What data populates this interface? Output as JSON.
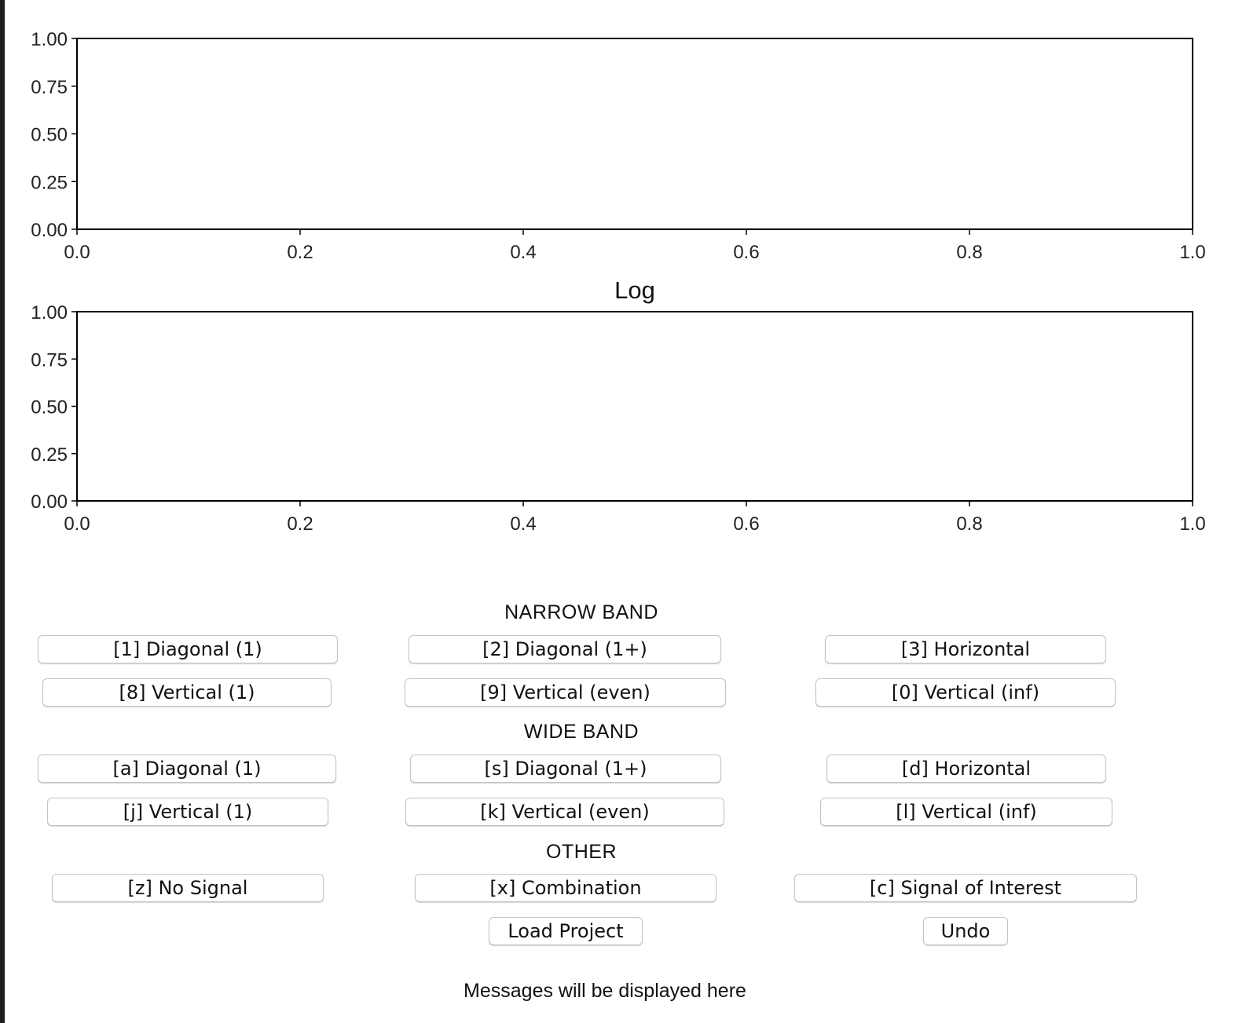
{
  "plots": {
    "top": {
      "title": "",
      "xticks": [
        "0.0",
        "0.2",
        "0.4",
        "0.6",
        "0.8",
        "1.0"
      ],
      "yticks": [
        "0.00",
        "0.25",
        "0.50",
        "0.75",
        "1.00"
      ]
    },
    "bottom": {
      "title": "Log",
      "xticks": [
        "0.0",
        "0.2",
        "0.4",
        "0.6",
        "0.8",
        "1.0"
      ],
      "yticks": [
        "0.00",
        "0.25",
        "0.50",
        "0.75",
        "1.00"
      ]
    }
  },
  "chart_data": [
    {
      "type": "line",
      "title": "",
      "xlabel": "",
      "ylabel": "",
      "xlim": [
        0.0,
        1.0
      ],
      "ylim": [
        0.0,
        1.0
      ],
      "xticks": [
        0.0,
        0.2,
        0.4,
        0.6,
        0.8,
        1.0
      ],
      "yticks": [
        0.0,
        0.25,
        0.5,
        0.75,
        1.0
      ],
      "series": [],
      "grid": false
    },
    {
      "type": "line",
      "title": "Log",
      "xlabel": "",
      "ylabel": "",
      "xlim": [
        0.0,
        1.0
      ],
      "ylim": [
        0.0,
        1.0
      ],
      "xticks": [
        0.0,
        0.2,
        0.4,
        0.6,
        0.8,
        1.0
      ],
      "yticks": [
        0.0,
        0.25,
        0.5,
        0.75,
        1.0
      ],
      "series": [],
      "grid": false
    }
  ],
  "sections": {
    "narrow": "NARROW BAND",
    "wide": "WIDE BAND",
    "other": "OTHER"
  },
  "buttons": {
    "n1": "[1] Diagonal (1)",
    "n2": "[2] Diagonal (1+)",
    "n3": "[3] Horizontal",
    "n8": "[8] Vertical (1)",
    "n9": "[9] Vertical (even)",
    "n0": "[0] Vertical (inf)",
    "wa": "[a] Diagonal (1)",
    "ws": "[s] Diagonal (1+)",
    "wd": "[d] Horizontal",
    "wj": "[j] Vertical (1)",
    "wk": "[k] Vertical (even)",
    "wl": "[l] Vertical (inf)",
    "oz": "[z] No Signal",
    "ox": "[x] Combination",
    "oc": "[c] Signal of Interest",
    "load": "Load Project",
    "undo": "Undo"
  },
  "message": "Messages will be displayed here"
}
